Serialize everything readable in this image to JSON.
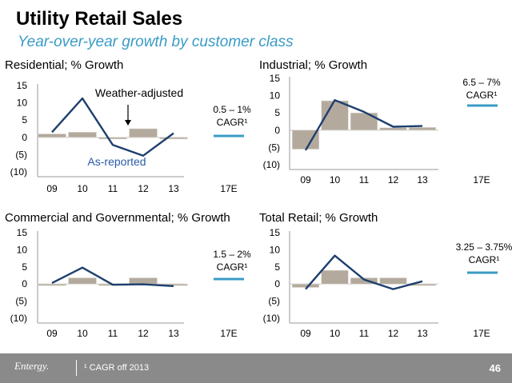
{
  "header": {
    "title": "Utility Retail Sales",
    "subtitle": "Year-over-year growth by customer class"
  },
  "footer": {
    "logo_text": "Entergy.",
    "note": "¹ CAGR off 2013",
    "page_number": "46"
  },
  "colors": {
    "bar": "#b3aa9d",
    "line": "#1d3f6e",
    "cagr_line": "#3a9bc6",
    "subtitle": "#3a9bc6"
  },
  "chart_data": [
    {
      "id": "residential",
      "type": "bar+line",
      "title": "Residential; % Growth",
      "x_ticks": [
        "09",
        "10",
        "11",
        "12",
        "13",
        "17E"
      ],
      "y_ticks": [
        "15",
        "10",
        "5",
        "0",
        "(5)",
        "(10)"
      ],
      "ylim": [
        -10,
        15
      ],
      "series": [
        {
          "name": "Weather-adjusted",
          "kind": "bar",
          "values": [
            1.0,
            1.5,
            0.0,
            2.5,
            -0.3
          ]
        },
        {
          "name": "As-reported",
          "kind": "line",
          "values": [
            1.5,
            11.3,
            -2.2,
            -5.3,
            1.2
          ]
        }
      ],
      "cagr": {
        "range": "0.5 – 1%",
        "label": "CAGR¹"
      },
      "annotations": [
        "Weather-adjusted",
        "As-reported"
      ]
    },
    {
      "id": "industrial",
      "type": "bar+line",
      "title": "Industrial; % Growth",
      "x_ticks": [
        "09",
        "10",
        "11",
        "12",
        "13",
        "17E"
      ],
      "y_ticks": [
        "15",
        "10",
        "5",
        "0",
        "(5)",
        "(10)"
      ],
      "ylim": [
        -10,
        15
      ],
      "series": [
        {
          "kind": "bar",
          "values": [
            -5.5,
            8.5,
            5.0,
            0.7,
            0.8
          ]
        },
        {
          "kind": "line",
          "values": [
            -5.8,
            8.7,
            5.3,
            1.0,
            1.2
          ]
        }
      ],
      "cagr": {
        "range": "6.5 – 7%",
        "label": "CAGR¹"
      }
    },
    {
      "id": "commercial",
      "type": "bar+line",
      "title": "Commercial and Governmental; % Growth",
      "x_ticks": [
        "09",
        "10",
        "11",
        "12",
        "13",
        "17E"
      ],
      "y_ticks": [
        "15",
        "10",
        "5",
        "0",
        "(5)",
        "(10)"
      ],
      "ylim": [
        -10,
        15
      ],
      "series": [
        {
          "kind": "bar",
          "values": [
            0.0,
            1.8,
            0.0,
            1.8,
            0.0
          ]
        },
        {
          "kind": "line",
          "values": [
            0.3,
            4.8,
            -0.2,
            -0.1,
            -0.6
          ]
        }
      ],
      "cagr": {
        "range": "1.5 – 2%",
        "label": "CAGR¹"
      }
    },
    {
      "id": "total",
      "type": "bar+line",
      "title": "Total Retail; % Growth",
      "x_ticks": [
        "09",
        "10",
        "11",
        "12",
        "13",
        "17E"
      ],
      "y_ticks": [
        "15",
        "10",
        "5",
        "0",
        "(5)",
        "(10)"
      ],
      "ylim": [
        -10,
        15
      ],
      "series": [
        {
          "kind": "bar",
          "values": [
            -1.0,
            4.0,
            1.8,
            1.8,
            0.0
          ]
        },
        {
          "kind": "line",
          "values": [
            -1.5,
            8.3,
            1.3,
            -1.5,
            0.8
          ]
        }
      ],
      "cagr": {
        "range": "3.25 – 3.75%",
        "label": "CAGR¹"
      }
    }
  ]
}
